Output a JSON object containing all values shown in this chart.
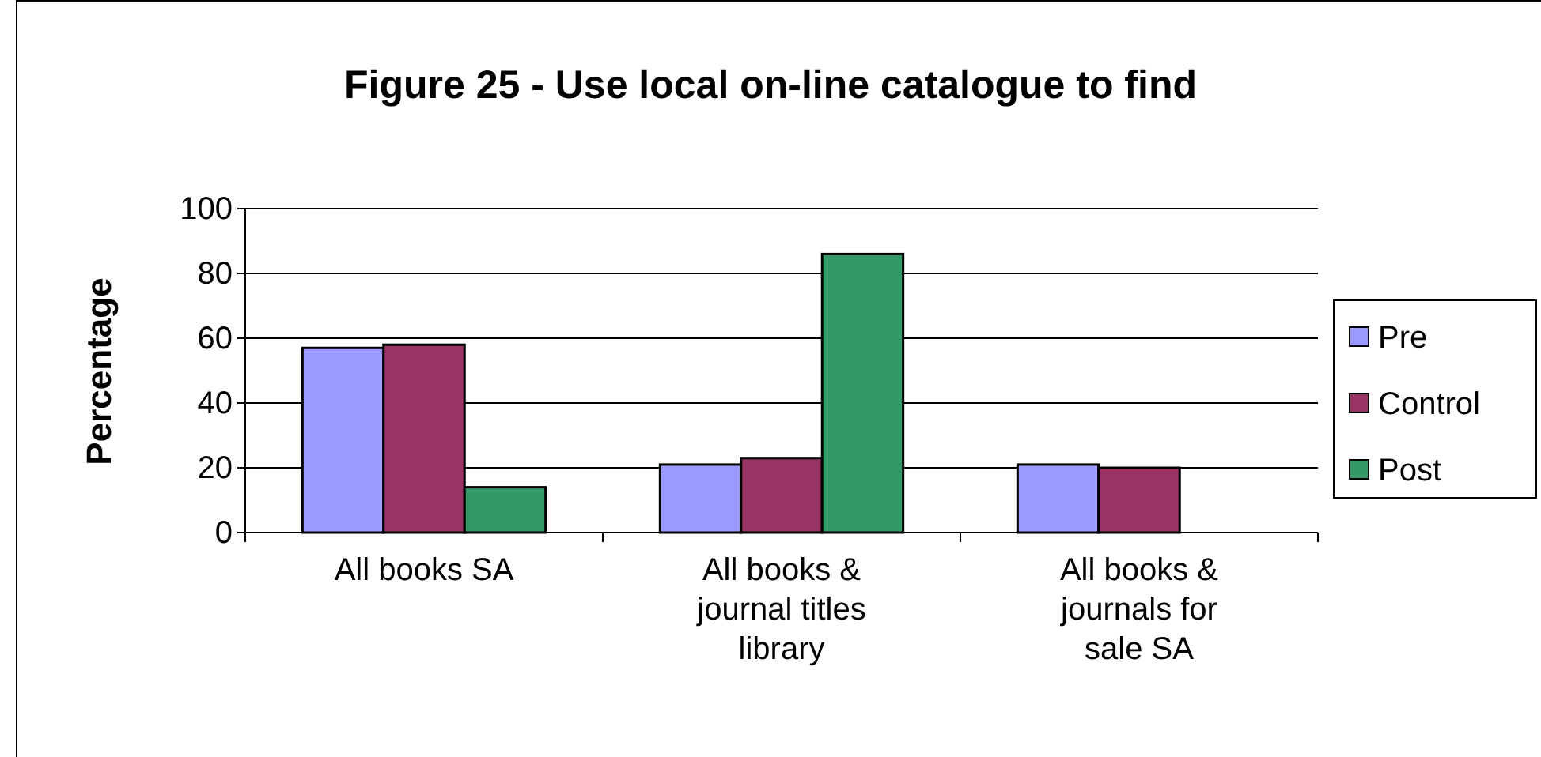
{
  "chart_data": {
    "type": "bar",
    "title": "Figure 25 - Use local on-line catalogue to find",
    "categories": [
      "All books SA",
      "All books & journal titles library",
      "All books & journals for sale SA"
    ],
    "ylabel": "Percentage",
    "series": [
      {
        "name": "Pre",
        "color": "#9999ff",
        "values": [
          57,
          21,
          21
        ]
      },
      {
        "name": "Control",
        "color": "#993366",
        "values": [
          58,
          23,
          20
        ]
      },
      {
        "name": "Post",
        "color": "#339966",
        "values": [
          14,
          86,
          0
        ]
      }
    ],
    "ylim": [
      0,
      100
    ],
    "yticks": [
      0,
      20,
      40,
      60,
      80,
      100
    ],
    "grid": "y",
    "legend": "right"
  }
}
